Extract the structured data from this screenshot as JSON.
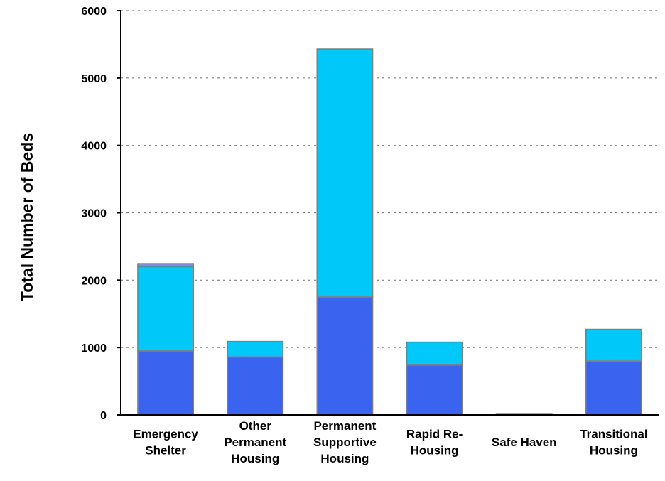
{
  "chart_data": {
    "type": "bar",
    "stacked": true,
    "title": "",
    "xlabel": "",
    "ylabel": "Total Number of Beds",
    "ylim": [
      0,
      6000
    ],
    "yticks": [
      0,
      1000,
      2000,
      3000,
      4000,
      5000,
      6000
    ],
    "grid": true,
    "legend": "none",
    "categories": [
      [
        "Emergency",
        "Shelter"
      ],
      [
        "Other",
        "Permanent",
        "Housing"
      ],
      [
        "Permanent",
        "Supportive",
        "Housing"
      ],
      [
        "Rapid Re-",
        "Housing"
      ],
      [
        "Safe Haven"
      ],
      [
        "Transitional",
        "Housing"
      ]
    ],
    "series": [
      {
        "values": [
          950,
          860,
          1750,
          740,
          15,
          800
        ]
      },
      {
        "values": [
          1250,
          230,
          3680,
          340,
          5,
          470
        ]
      },
      {
        "values": [
          45,
          0,
          0,
          0,
          0,
          0
        ]
      }
    ],
    "colors": {
      "series": [
        "#3a64f0",
        "#00c8f8",
        "#8a88d8"
      ],
      "bar_stroke": "#7f7f7f",
      "grid": "#808080",
      "axis": "#000000"
    }
  }
}
